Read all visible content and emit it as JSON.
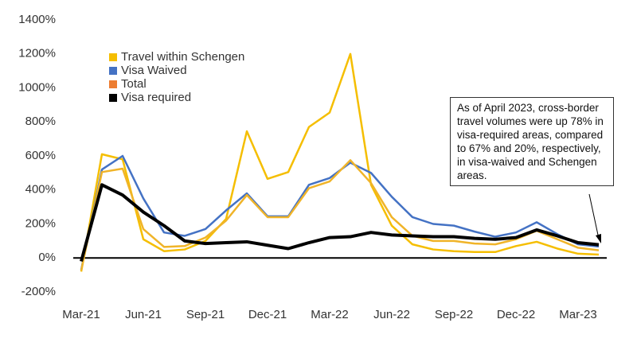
{
  "chart_data": {
    "type": "line",
    "categories": [
      "Mar-21",
      null,
      null,
      "Jun-21",
      null,
      null,
      "Sep-21",
      null,
      null,
      "Dec-21",
      null,
      null,
      "Mar-22",
      null,
      null,
      "Jun-22",
      null,
      null,
      "Sep-22",
      null,
      null,
      "Dec-22",
      null,
      null,
      "Mar-23",
      null
    ],
    "series": [
      {
        "name": "Travel within Schengen",
        "color": "#f5be00",
        "values": [
          -80,
          610,
          580,
          110,
          40,
          50,
          100,
          230,
          745,
          465,
          505,
          770,
          855,
          1200,
          430,
          190,
          80,
          50,
          40,
          35,
          35,
          70,
          95,
          55,
          25,
          20
        ]
      },
      {
        "name": "Visa Waived",
        "color": "#4472c4",
        "values": [
          -70,
          520,
          600,
          350,
          150,
          130,
          170,
          280,
          380,
          245,
          245,
          430,
          470,
          560,
          500,
          360,
          240,
          200,
          190,
          155,
          125,
          150,
          210,
          140,
          80,
          67
        ]
      },
      {
        "name": "Total",
        "color": "#f0b429",
        "values": [
          -75,
          505,
          525,
          170,
          65,
          70,
          120,
          220,
          370,
          240,
          240,
          410,
          450,
          575,
          440,
          240,
          130,
          100,
          100,
          85,
          80,
          110,
          160,
          110,
          60,
          45
        ]
      },
      {
        "name": "Visa required",
        "color": "#000000",
        "values": [
          -20,
          430,
          370,
          270,
          190,
          100,
          85,
          90,
          95,
          75,
          55,
          90,
          120,
          125,
          150,
          135,
          130,
          125,
          125,
          115,
          110,
          120,
          165,
          130,
          90,
          78
        ]
      }
    ],
    "legend_colors": [
      "#f5be00",
      "#4472c4",
      "#ed7d31",
      "#000000"
    ],
    "ylim": [
      -200,
      1400
    ],
    "yticks": [
      {
        "value": -200,
        "label": "-200%"
      },
      {
        "value": 0,
        "label": "0%"
      },
      {
        "value": 200,
        "label": "200%"
      },
      {
        "value": 400,
        "label": "400%"
      },
      {
        "value": 600,
        "label": "600%"
      },
      {
        "value": 800,
        "label": "800%"
      },
      {
        "value": 1000,
        "label": "1000%"
      },
      {
        "value": 1200,
        "label": "1200%"
      },
      {
        "value": 1400,
        "label": "1400%"
      }
    ],
    "annotation": "As of April 2023, cross-border travel volumes were up 78% in visa-required areas, compared to 67% and 20%, respectively, in visa-waived and Schengen areas.",
    "grid": false
  }
}
